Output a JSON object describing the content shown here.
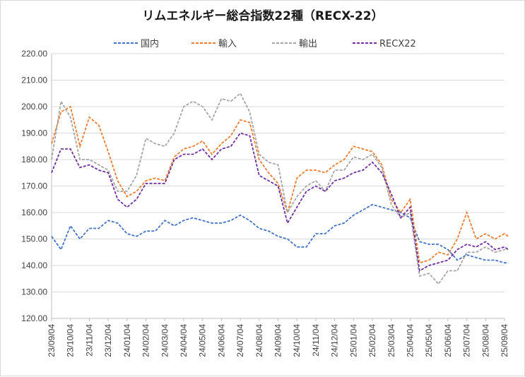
{
  "chart_data": {
    "type": "line",
    "title": "リムエネルギー総合指数22種（RECX-22）",
    "xlabel": "",
    "ylabel": "",
    "ylim": [
      120,
      220
    ],
    "yticks": [
      "120.00",
      "130.00",
      "140.00",
      "150.00",
      "160.00",
      "170.00",
      "180.00",
      "190.00",
      "200.00",
      "210.00",
      "220.00"
    ],
    "x_tick_labels": [
      "23/09/04",
      "23/10/04",
      "23/11/04",
      "23/12/04",
      "24/01/04",
      "24/02/04",
      "24/03/04",
      "24/04/04",
      "24/05/04",
      "24/06/04",
      "24/07/04",
      "24/08/04",
      "24/09/04",
      "24/10/04",
      "24/11/04",
      "24/12/04",
      "25/01/04",
      "25/02/04",
      "25/03/04",
      "25/04/04",
      "25/05/04",
      "25/06/04",
      "25/07/04",
      "25/08/04",
      "25/09/04"
    ],
    "grid": true,
    "legend_position": "top",
    "x": [
      "23/09/04",
      "23/09/19",
      "23/10/04",
      "23/10/19",
      "23/11/04",
      "23/11/19",
      "23/12/04",
      "23/12/19",
      "24/01/04",
      "24/01/19",
      "24/02/04",
      "24/02/19",
      "24/03/04",
      "24/03/19",
      "24/04/04",
      "24/04/19",
      "24/05/04",
      "24/05/19",
      "24/06/04",
      "24/06/19",
      "24/07/04",
      "24/07/19",
      "24/08/04",
      "24/08/19",
      "24/09/04",
      "24/09/19",
      "24/10/04",
      "24/10/19",
      "24/11/04",
      "24/11/19",
      "24/12/04",
      "24/12/19",
      "25/01/04",
      "25/01/19",
      "25/02/04",
      "25/02/19",
      "25/03/04",
      "25/03/19",
      "25/04/04",
      "25/04/19",
      "25/05/04",
      "25/05/19",
      "25/06/04",
      "25/06/19",
      "25/07/04",
      "25/07/19",
      "25/08/04",
      "25/08/19",
      "25/09/04",
      "25/09/10"
    ],
    "series": [
      {
        "name": "国内",
        "color": "#4472c4",
        "values": [
          151,
          146,
          155,
          150,
          154,
          154,
          157,
          156,
          152,
          151,
          153,
          153,
          157,
          155,
          157,
          158,
          157,
          156,
          156,
          157,
          159,
          157,
          154,
          153,
          151,
          150,
          147,
          147,
          152,
          152,
          155,
          156,
          159,
          161,
          163,
          162,
          161,
          160,
          158,
          149,
          148,
          148,
          146,
          142,
          144,
          143,
          142,
          142,
          141,
          141
        ]
      },
      {
        "name": "輸入",
        "color": "#ed7d31",
        "values": [
          186,
          198,
          200,
          185,
          196,
          193,
          183,
          172,
          166,
          168,
          172,
          173,
          172,
          181,
          184,
          185,
          187,
          182,
          186,
          189,
          195,
          194,
          180,
          175,
          171,
          160,
          173,
          176,
          176,
          175,
          178,
          180,
          185,
          184,
          183,
          178,
          165,
          160,
          165,
          141,
          142,
          145,
          144,
          150,
          160,
          150,
          152,
          150,
          152,
          151
        ]
      },
      {
        "name": "輸出",
        "color": "#a5a5a5",
        "values": [
          180,
          202,
          196,
          180,
          180,
          178,
          176,
          168,
          168,
          174,
          188,
          186,
          185,
          190,
          200,
          202,
          200,
          195,
          203,
          202,
          205,
          198,
          182,
          179,
          178,
          160,
          166,
          170,
          172,
          168,
          176,
          176,
          181,
          180,
          182,
          177,
          163,
          158,
          160,
          136,
          137,
          133,
          138,
          138,
          145,
          145,
          147,
          145,
          146,
          146
        ]
      },
      {
        "name": "RECX22",
        "color": "#7030a0",
        "values": [
          175,
          184,
          184,
          177,
          178,
          176,
          175,
          165,
          162,
          165,
          171,
          171,
          171,
          180,
          182,
          182,
          184,
          180,
          184,
          185,
          190,
          189,
          174,
          172,
          170,
          156,
          162,
          168,
          170,
          168,
          172,
          173,
          175,
          176,
          179,
          175,
          167,
          158,
          162,
          138,
          140,
          141,
          142,
          146,
          148,
          147,
          149,
          146,
          147,
          146
        ]
      }
    ]
  }
}
